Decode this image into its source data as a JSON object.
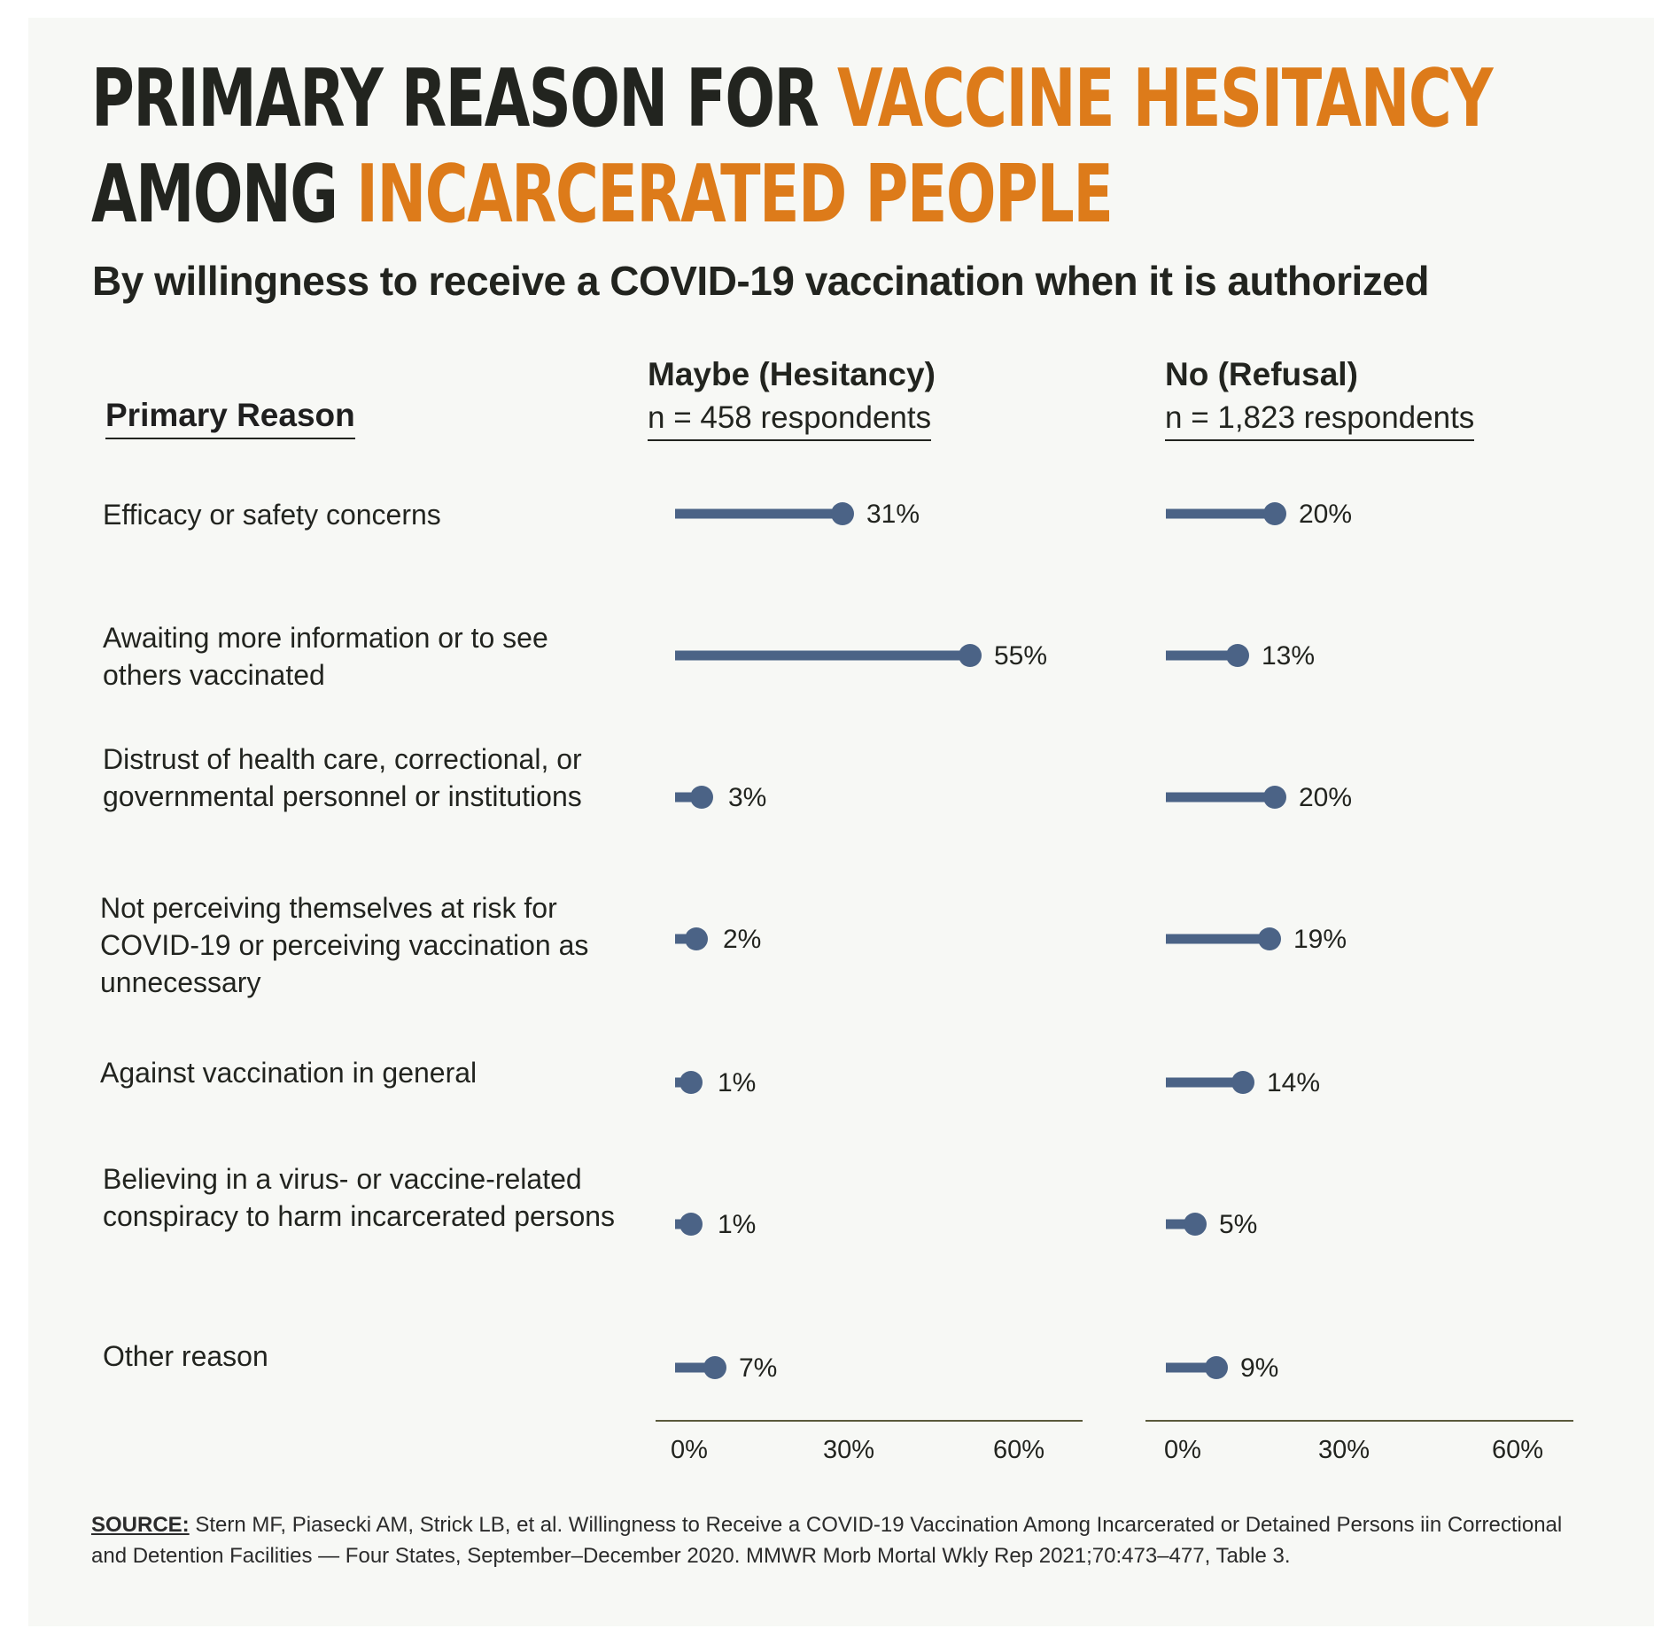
{
  "header": {
    "title_part1": "PRIMARY REASON FOR ",
    "title_part2": "VACCINE HESITANCY",
    "title_part3": "AMONG ",
    "title_part4": "INCARCERATED PEOPLE",
    "subtitle": "By willingness to receive a COVID-19 vaccination when it is authorized"
  },
  "columns": {
    "primary_reason_label": "Primary Reason",
    "maybe_title": "Maybe (Hesitancy)",
    "maybe_n": "n = 458 respondents",
    "no_title": "No (Refusal)",
    "no_n": "n = 1,823 respondents"
  },
  "colors": {
    "accent": "#dd7b1a",
    "dark": "#22241f",
    "bar": "#4b6386",
    "axis": "#5a5a3c",
    "panel": "#f7f8f5"
  },
  "chart_data": {
    "type": "lollipop",
    "categories": [
      "Efficacy or safety concerns",
      "Awaiting more information or to see others vaccinated",
      "Distrust of health care, correctional, or governmental personnel or institutions",
      "Not perceiving themselves at risk for COVID-19 or perceiving vaccination as unnecessary",
      "Against vaccination in general",
      "Believing in a virus- or vaccine-related conspiracy to harm incarcerated persons",
      "Other reason"
    ],
    "category_lines": [
      [
        "Efficacy or safety concerns"
      ],
      [
        "Awaiting more information or to see",
        "others vaccinated"
      ],
      [
        "Distrust of health care, correctional, or",
        "governmental personnel or institutions"
      ],
      [
        "Not perceiving themselves at risk for",
        "COVID-19 or perceiving vaccination as",
        "unnecessary"
      ],
      [
        "Against vaccination in general"
      ],
      [
        "Believing in a virus- or vaccine-related",
        "conspiracy to harm incarcerated persons"
      ],
      [
        "Other reason"
      ]
    ],
    "series": [
      {
        "name": "Maybe (Hesitancy)",
        "values": [
          31,
          55,
          3,
          2,
          1,
          1,
          7
        ],
        "labels": [
          "31%",
          "55%",
          "3%",
          "2%",
          "1%",
          "1%",
          "7%"
        ]
      },
      {
        "name": "No (Refusal)",
        "values": [
          20,
          13,
          20,
          19,
          14,
          5,
          9
        ],
        "labels": [
          "20%",
          "13%",
          "20%",
          "19%",
          "14%",
          "5%",
          "9%"
        ]
      }
    ],
    "xlim": [
      0,
      60
    ],
    "xticks": [
      0,
      30,
      60
    ],
    "xtick_labels": [
      "0%",
      "30%",
      "60%"
    ],
    "unit": "%"
  },
  "source": {
    "label": "SOURCE:",
    "text": " Stern MF, Piasecki AM, Strick LB, et al. Willingness to Receive a COVID-19 Vaccination Among Incarcerated or Detained Persons iin Correctional and Detention Facilities — Four States, September–December 2020. MMWR Morb Mortal Wkly Rep 2021;70:473–477, Table 3."
  }
}
